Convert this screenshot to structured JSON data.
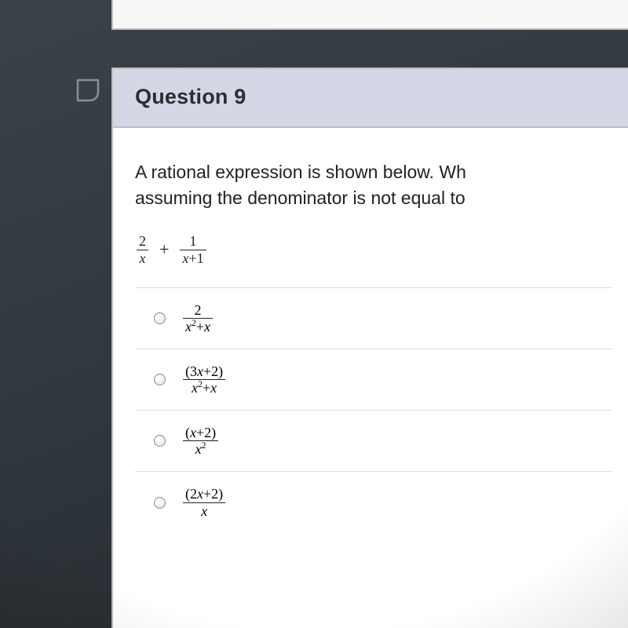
{
  "colors": {
    "page_bg": "#3a434a",
    "card_bg": "#ffffff",
    "card_border": "#bfbfbf",
    "header_bg": "#d6d7e6",
    "text": "#222222",
    "divider": "#dcdcdc",
    "flag_stroke": "#8a8f95"
  },
  "flag": {
    "name": "flag-icon"
  },
  "question": {
    "title": "Question 9",
    "prompt_line1": "A rational expression is shown below. Wh",
    "prompt_line2": "assuming the denominator is not equal to",
    "expression": {
      "term1": {
        "num": "2",
        "den_html": "<span class=\"it\">x</span>"
      },
      "plus": "+",
      "term2": {
        "num": "1",
        "den_html": "<span class=\"it\">x</span>+1"
      }
    },
    "choices": [
      {
        "num_html": "2",
        "den_html": "<span class=\"it\">x</span><span class=\"sup\">2</span>+<span class=\"it\">x</span>"
      },
      {
        "num_html": "(3<span class=\"it\">x</span>+2)",
        "den_html": "<span class=\"it\">x</span><span class=\"sup\">2</span>+<span class=\"it\">x</span>"
      },
      {
        "num_html": "(<span class=\"it\">x</span>+2)",
        "den_html": "<span class=\"it\">x</span><span class=\"sup\">2</span>"
      },
      {
        "num_html": "(2<span class=\"it\">x</span>+2)",
        "den_html": "<span class=\"it\">x</span>"
      }
    ]
  }
}
